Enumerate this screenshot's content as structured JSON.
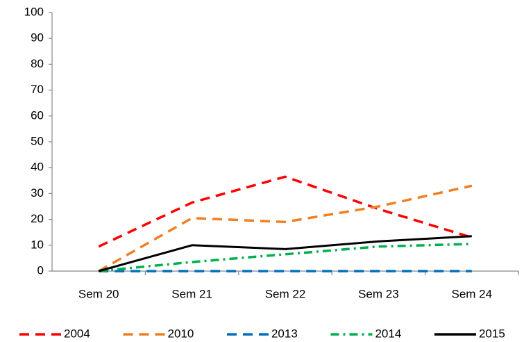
{
  "chart_data": {
    "type": "line",
    "categories": [
      "Sem 20",
      "Sem 21",
      "Sem 22",
      "Sem 23",
      "Sem 24"
    ],
    "series": [
      {
        "name": "2004",
        "color": "#ff0000",
        "style": "dash",
        "values": [
          9.5,
          26.5,
          36.5,
          24,
          13
        ]
      },
      {
        "name": "2010",
        "color": "#f07f22",
        "style": "dash",
        "values": [
          0,
          20.5,
          19,
          25,
          33
        ]
      },
      {
        "name": "2013",
        "color": "#0070c0",
        "style": "dash",
        "values": [
          0,
          0,
          0,
          0,
          0
        ]
      },
      {
        "name": "2014",
        "color": "#00b050",
        "style": "dashdot",
        "values": [
          0,
          3.5,
          6.5,
          9.5,
          10.5
        ]
      },
      {
        "name": "2015",
        "color": "#000000",
        "style": "solid",
        "values": [
          0,
          10,
          8.5,
          11.5,
          13.5
        ]
      }
    ],
    "ylim": [
      0,
      100
    ],
    "yticks": [
      0,
      10,
      20,
      30,
      40,
      50,
      60,
      70,
      80,
      90,
      100
    ],
    "grid": false,
    "legend": "bottom"
  }
}
